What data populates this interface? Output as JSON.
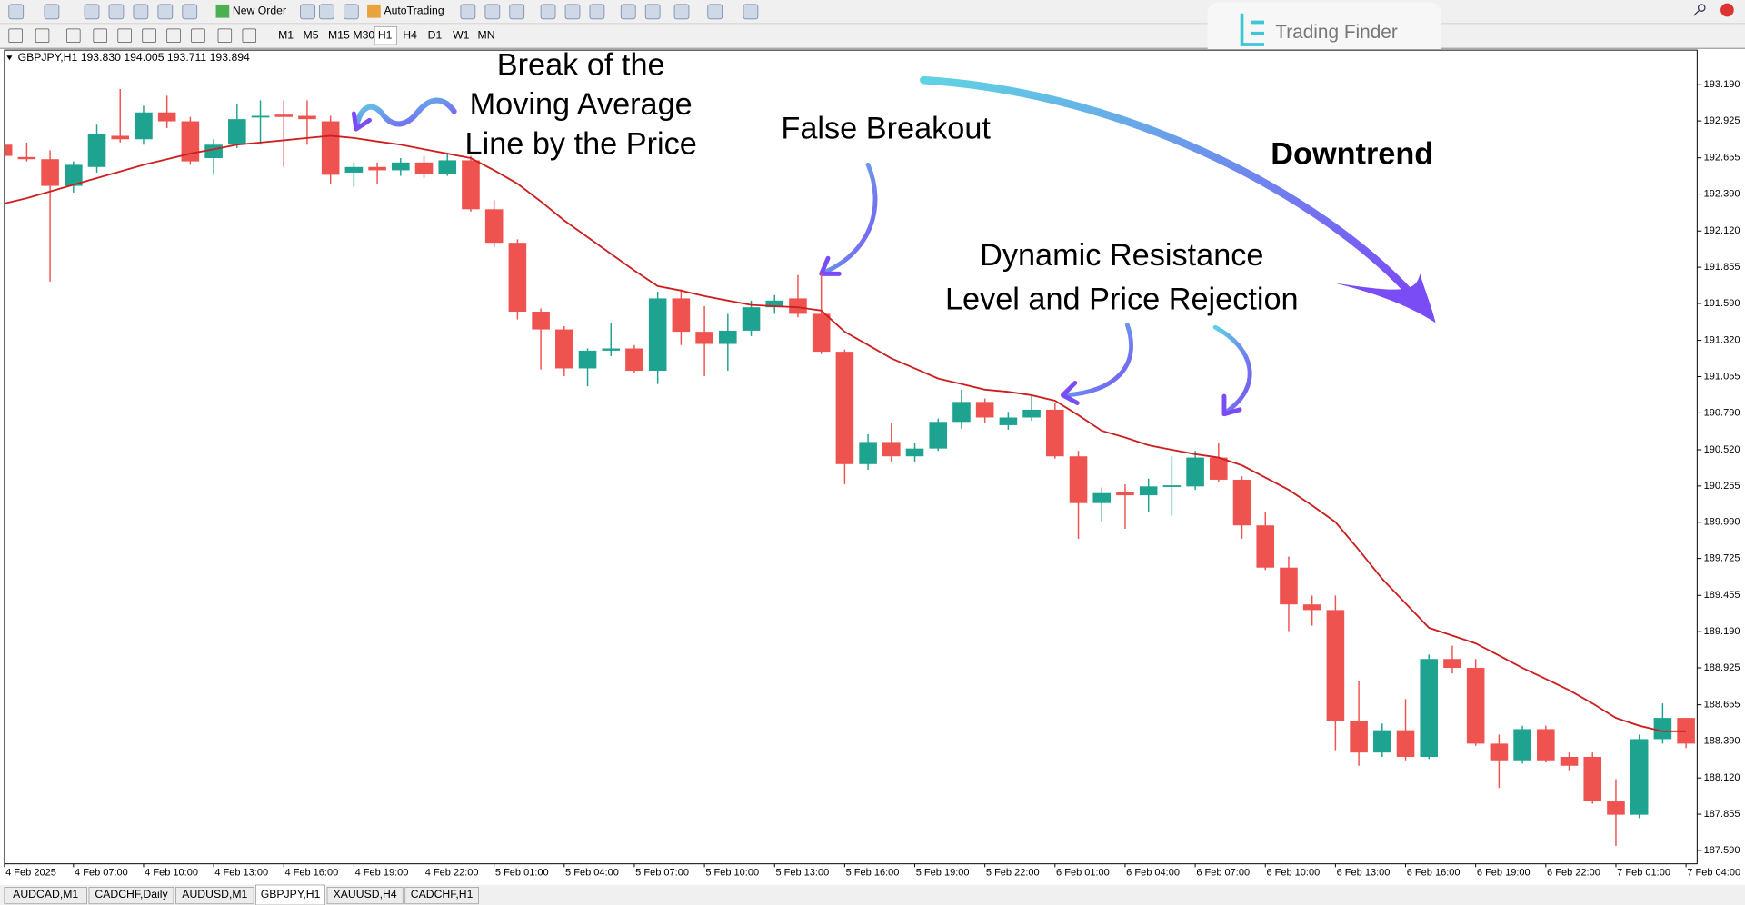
{
  "toolbar": {
    "buttons": [
      "New Order",
      "AutoTrading"
    ],
    "timeframes": [
      "M1",
      "M5",
      "M15",
      "M30",
      "H1",
      "H4",
      "D1",
      "W1",
      "MN"
    ]
  },
  "logo": "Trading Finder",
  "tabs": [
    "AUDCAD,M1",
    "CADCHF,Daily",
    "AUDUSD,M1",
    "GBPJPY,H1",
    "XAUUSD,H4",
    "CADCHF,H1"
  ],
  "chart_data": {
    "type": "candlestick",
    "title": "GBPJPY,H1  193.830 194.005 193.711 193.894",
    "up_color": "#1fa391",
    "down_color": "#ef5350",
    "categories": [
      "4 Feb 2025",
      null,
      null,
      "4 Feb 07:00",
      null,
      null,
      "4 Feb 10:00",
      null,
      null,
      "4 Feb 13:00",
      null,
      null,
      "4 Feb 16:00",
      null,
      null,
      "4 Feb 19:00",
      null,
      null,
      "4 Feb 22:00",
      null,
      null,
      "5 Feb 01:00",
      null,
      null,
      "5 Feb 04:00",
      null,
      null,
      "5 Feb 07:00",
      null,
      null,
      "5 Feb 10:00",
      null,
      null,
      "5 Feb 13:00",
      null,
      null,
      "5 Feb 16:00",
      null,
      null,
      "5 Feb 19:00",
      null,
      null,
      "5 Feb 22:00",
      null,
      null,
      "6 Feb 01:00",
      null,
      null,
      "6 Feb 04:00",
      null,
      null,
      "6 Feb 07:00",
      null,
      null,
      "6 Feb 10:00",
      null,
      null,
      "6 Feb 13:00",
      null,
      null,
      "6 Feb 16:00",
      null,
      null,
      "6 Feb 19:00",
      null,
      null,
      "6 Feb 22:00",
      null,
      null,
      "7 Feb 01:00",
      null,
      null,
      "7 Feb 04:00"
    ],
    "open": [
      192.751,
      192.661,
      192.645,
      192.45,
      192.588,
      192.816,
      192.791,
      192.987,
      192.922,
      192.653,
      192.751,
      192.954,
      192.971,
      192.962,
      192.922,
      192.547,
      192.588,
      192.564,
      192.621,
      192.539,
      192.637,
      192.279,
      192.034,
      191.53,
      191.4,
      191.115,
      191.245,
      191.261,
      191.098,
      191.627,
      191.383,
      191.294,
      191.391,
      191.562,
      191.627,
      191.514,
      191.237,
      190.415,
      190.577,
      190.472,
      190.529,
      190.724,
      190.87,
      190.7,
      190.756,
      190.813,
      190.472,
      190.13,
      190.211,
      190.187,
      190.252,
      190.252,
      190.463,
      190.301,
      189.967,
      189.658,
      189.389,
      189.348,
      188.534,
      188.306,
      188.469,
      188.274,
      188.99,
      188.925,
      188.371,
      188.249,
      188.477,
      188.274,
      188.274,
      187.948,
      187.851,
      188.404,
      188.559
    ],
    "high": [
      192.791,
      192.767,
      192.71,
      192.629,
      192.897,
      193.158,
      193.036,
      193.109,
      192.954,
      192.791,
      193.052,
      193.076,
      193.076,
      193.076,
      192.962,
      192.621,
      192.621,
      192.653,
      192.669,
      192.686,
      192.669,
      192.344,
      192.059,
      191.554,
      191.424,
      191.261,
      191.448,
      191.286,
      191.676,
      191.693,
      191.57,
      191.514,
      191.611,
      191.652,
      191.798,
      191.815,
      191.253,
      190.634,
      190.716,
      190.569,
      190.748,
      190.96,
      190.895,
      190.797,
      190.919,
      190.862,
      190.512,
      190.244,
      190.268,
      190.309,
      190.472,
      190.512,
      190.569,
      190.325,
      190.065,
      189.739,
      189.454,
      189.454,
      188.827,
      188.518,
      188.697,
      189.023,
      189.088,
      188.99,
      188.437,
      188.502,
      188.502,
      188.306,
      188.306,
      188.111,
      188.437,
      188.665,
      188.559
    ],
    "low": [
      192.653,
      192.629,
      191.75,
      192.401,
      192.547,
      192.767,
      192.751,
      192.873,
      192.604,
      192.531,
      192.726,
      192.751,
      192.588,
      192.751,
      192.466,
      192.441,
      192.466,
      192.523,
      192.507,
      192.523,
      192.262,
      192.002,
      191.473,
      191.107,
      191.058,
      190.984,
      191.204,
      191.082,
      191.001,
      191.286,
      191.058,
      191.098,
      191.351,
      191.514,
      191.489,
      191.22,
      190.268,
      190.374,
      190.431,
      190.431,
      190.512,
      190.675,
      190.716,
      190.667,
      190.732,
      190.455,
      189.869,
      189.999,
      189.942,
      190.065,
      190.04,
      190.227,
      190.284,
      189.869,
      189.641,
      189.194,
      189.234,
      188.323,
      188.209,
      188.274,
      188.249,
      188.258,
      188.884,
      188.355,
      188.046,
      188.225,
      188.233,
      188.176,
      187.932,
      187.623,
      187.826,
      188.371,
      188.339
    ],
    "close": [
      192.669,
      192.645,
      192.45,
      192.604,
      192.832,
      192.791,
      192.987,
      192.922,
      192.629,
      192.751,
      192.938,
      192.962,
      192.954,
      192.938,
      192.531,
      192.588,
      192.564,
      192.621,
      192.539,
      192.637,
      192.279,
      192.034,
      191.53,
      191.4,
      191.115,
      191.245,
      191.261,
      191.098,
      191.627,
      191.383,
      191.294,
      191.391,
      191.562,
      191.611,
      191.514,
      191.237,
      190.415,
      190.577,
      190.472,
      190.529,
      190.724,
      190.87,
      190.756,
      190.756,
      190.813,
      190.472,
      190.13,
      190.203,
      190.187,
      190.252,
      190.26,
      190.463,
      190.301,
      189.967,
      189.658,
      189.389,
      189.348,
      188.534,
      188.306,
      188.469,
      188.274,
      188.99,
      188.925,
      188.371,
      188.249,
      188.477,
      188.249,
      188.209,
      187.948,
      187.851,
      188.404,
      188.559,
      188.371
    ],
    "moving_average": {
      "color": "#cc1f1f",
      "values": [
        192.319,
        192.36,
        192.409,
        192.458,
        192.507,
        192.555,
        192.604,
        192.645,
        192.686,
        192.718,
        192.751,
        192.767,
        192.783,
        192.8,
        192.816,
        192.8,
        192.775,
        192.751,
        192.718,
        192.686,
        192.653,
        192.564,
        192.466,
        192.336,
        192.197,
        192.075,
        191.953,
        191.831,
        191.717,
        191.684,
        191.644,
        191.611,
        191.579,
        191.57,
        191.562,
        191.538,
        191.383,
        191.286,
        191.188,
        191.115,
        191.041,
        191.001,
        190.96,
        190.944,
        190.919,
        190.879,
        190.773,
        190.659,
        190.61,
        190.553,
        190.52,
        190.488,
        190.463,
        190.406,
        190.317,
        190.227,
        190.113,
        189.991,
        189.788,
        189.576,
        189.397,
        189.218,
        189.161,
        189.104,
        189.015,
        188.925,
        188.844,
        188.762,
        188.665,
        188.559,
        188.502,
        188.461,
        188.461
      ]
    },
    "ylim": [
      187.492,
      193.443
    ],
    "yticks": [
      {
        "value": 193.19,
        "label": "193.190"
      },
      192.925,
      192.655,
      {
        "value": 192.39,
        "label": "192.390"
      },
      {
        "value": 192.12,
        "label": "192.120"
      },
      191.855,
      {
        "value": 191.59,
        "label": "191.590"
      },
      {
        "value": 191.32,
        "label": "191.320"
      },
      191.055,
      {
        "value": 190.79,
        "label": "190.790"
      },
      {
        "value": 190.52,
        "label": "190.520"
      },
      190.255,
      {
        "value": 189.99,
        "label": "189.990"
      },
      189.725,
      189.455,
      {
        "value": 189.19,
        "label": "189.190"
      },
      188.925,
      188.655,
      {
        "value": 188.39,
        "label": "188.390"
      },
      {
        "value": 188.12,
        "label": "188.120"
      },
      187.855,
      {
        "value": 187.59,
        "label": "187.590"
      }
    ],
    "annotations": [
      {
        "lines": [
          "Break of the",
          "Moving Average",
          "Line by the Price"
        ]
      },
      {
        "lines": [
          "False Breakout"
        ]
      },
      {
        "lines": [
          "Downtrend"
        ]
      },
      {
        "lines": [
          "Dynamic Resistance",
          "Level and Price Rejection"
        ]
      }
    ]
  }
}
